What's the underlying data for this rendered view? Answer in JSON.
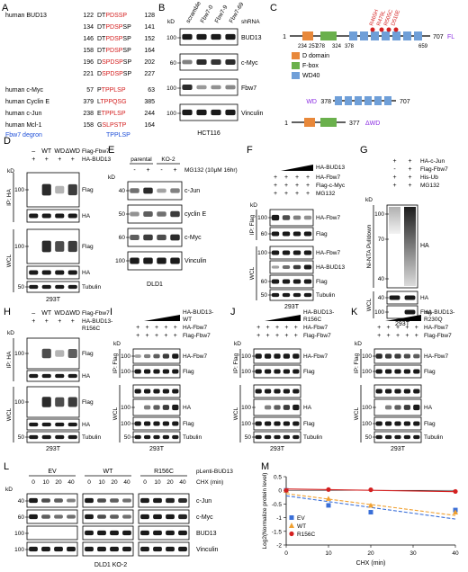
{
  "colors": {
    "red": "#d42020",
    "blue": "#1e4fd8",
    "purple": "#8a2be2",
    "orange": "#e8883a",
    "green": "#6ab04c",
    "wdblue": "#6f9fd8",
    "band": "#1a1a1a"
  },
  "panelA": {
    "letter": "A",
    "rows": [
      {
        "name": "human BUD13",
        "start": "122",
        "pre": "DT",
        "red": "PDSSP",
        "post": "",
        "end": "128"
      },
      {
        "name": "",
        "start": "134",
        "pre": "DT",
        "red": "PDSP",
        "post": "SP",
        "end": "141"
      },
      {
        "name": "",
        "start": "146",
        "pre": "DT",
        "red": "PDSP",
        "post": "SP",
        "end": "152"
      },
      {
        "name": "",
        "start": "158",
        "pre": "DT",
        "red": "PDSP",
        "post": "SP",
        "end": "164"
      },
      {
        "name": "",
        "start": "196",
        "pre": "D",
        "red": "SPDSP",
        "post": "SP",
        "end": "202"
      },
      {
        "name": "",
        "start": "221",
        "pre": "D",
        "red": "SPDSP",
        "post": "SP",
        "end": "227"
      },
      {
        "name": "human c-Myc",
        "start": "57",
        "pre": "P",
        "red": "TPPLSP",
        "post": "",
        "end": "63"
      },
      {
        "name": "human Cyclin E",
        "start": "379",
        "pre": "L",
        "red": "TPPQSG",
        "post": "",
        "end": "385"
      },
      {
        "name": "human c-Jun",
        "start": "238",
        "pre": "E",
        "red": "TPPLSP",
        "post": "",
        "end": "244"
      },
      {
        "name": "human Mcl-1",
        "start": "158",
        "pre": "G",
        "red": "SLPSTP",
        "post": "",
        "end": "164"
      }
    ],
    "degron_label": "Fbw7 degron",
    "degron_seq": "TPPLSP"
  },
  "panelB": {
    "letter": "B",
    "kd": "kD",
    "lanes": [
      "scramble",
      "Fbw7-0",
      "Fbw7-9",
      "Fbw7-69"
    ],
    "shrna": "shRNA",
    "blots": [
      {
        "mw": "100",
        "label": "BUD13"
      },
      {
        "mw": "60",
        "label": "c-Myc"
      },
      {
        "mw": "100",
        "label": "Fbw7"
      },
      {
        "mw": "100",
        "label": "Vinculin"
      }
    ],
    "cell": "HCT116"
  },
  "panelC": {
    "letter": "C",
    "start": "1",
    "mutations": [
      "R465H",
      "R479L",
      "R505C",
      "D510E"
    ],
    "fl_end": "707",
    "fl_label": "FL",
    "ticks": [
      "234",
      "257",
      "278",
      "324",
      "378",
      "659"
    ],
    "legend": [
      {
        "label": "D domain"
      },
      {
        "label": "F-box"
      },
      {
        "label": "WD40"
      }
    ],
    "wd_label": "WD",
    "wd_start": "378",
    "wd_end": "707",
    "dwd_start": "1",
    "dwd_end": "377",
    "dwd_label": "ΔWD"
  },
  "panelD": {
    "letter": "D",
    "kd": "kD",
    "top": [
      "–",
      "WT",
      "WD",
      "ΔWD"
    ],
    "row1": "Flag-Fbw7",
    "row2": "HA-BUD13",
    "plus": "+",
    "ip": "IP: HA",
    "wcl": "WCL",
    "blots": [
      "Flag",
      "HA",
      "Flag",
      "HA",
      "Tubulin"
    ],
    "mw": [
      "100",
      "",
      "100",
      "",
      "50"
    ],
    "mw_extra": "40",
    "cell": "293T"
  },
  "panelE": {
    "letter": "E",
    "kd": "kD",
    "groups": [
      "parental",
      "KO-2"
    ],
    "treat": "MG132 (10μM 16hr)",
    "signs": [
      "-",
      "+",
      "-",
      "+"
    ],
    "blots": [
      {
        "mw": "40",
        "label": "c-Jun"
      },
      {
        "mw": "50",
        "label": "cyclin E"
      },
      {
        "mw": "60",
        "label": "c-Myc"
      },
      {
        "mw": "100",
        "label": "Vinculin"
      }
    ],
    "cell": "DLD1"
  },
  "panelF": {
    "letter": "F",
    "kd": "kD",
    "rows": [
      "HA-BUD13",
      "HA-Fbw7",
      "Flag-c-Myc",
      "MG132"
    ],
    "minus": "-",
    "plus": "+",
    "ip": "IP: Flag",
    "wcl": "WCL",
    "blots": [
      "HA-Fbw7",
      "Flag",
      "HA-Fbw7",
      "HA-BUD13",
      "Flag",
      "Tubulin"
    ],
    "mw": [
      "100",
      "60",
      "100",
      "",
      "60",
      "50"
    ],
    "cell": "293T"
  },
  "panelG": {
    "letter": "G",
    "kd": "kD",
    "rows": [
      "HA-c-Jun",
      "Flag-Fbw7",
      "His-Ub",
      "MG132"
    ],
    "signs": [
      [
        "+",
        "+"
      ],
      [
        "-",
        "+"
      ],
      [
        "+",
        "+"
      ],
      [
        "+",
        "+"
      ]
    ],
    "pulldown": "Ni-NTA Pulldown",
    "wcl": "WCL",
    "blots": [
      "HA",
      "HA",
      "Flag"
    ],
    "mw": [
      "100",
      "70",
      "40",
      "40",
      "100"
    ],
    "cell": "293T"
  },
  "panelH": {
    "letter": "H",
    "kd": "kD",
    "top": [
      "–",
      "WT",
      "WD",
      "ΔWD"
    ],
    "row1": "Flag-Fbw7",
    "row2": "HA-BUD13-",
    "row3": "R156C",
    "plus": "+",
    "ip": "IP: HA",
    "wcl": "WCL",
    "blots": [
      "Flag",
      "HA",
      "Flag",
      "HA",
      "Tubulin"
    ],
    "mw": [
      "100",
      "",
      "100",
      "",
      "50"
    ],
    "mw_extra": "40",
    "cell": "293T"
  },
  "panelI": {
    "letter": "I",
    "kd": "kD",
    "construct": [
      "HA-BUD13-",
      "WT"
    ],
    "rows": [
      "HA-Fbw7",
      "Flag-Fbw7"
    ],
    "plus": "+",
    "ip": "IP: Flag",
    "wcl": "WCL",
    "blots": [
      "HA-Fbw7",
      "Flag",
      "HA",
      "Flag",
      "Tubulin"
    ],
    "mw": [
      "100",
      "100",
      "100",
      "100",
      "50"
    ],
    "cell": "293T"
  },
  "panelJ": {
    "letter": "J",
    "kd": "kD",
    "construct": [
      "HA-BUD13-",
      "R156C"
    ],
    "rows": [
      "HA-Fbw7",
      "Flag-Fbw7"
    ],
    "plus": "+",
    "ip": "IP: Flag",
    "wcl": "WCL",
    "blots": [
      "HA-Fbw7",
      "Flag",
      "HA",
      "Flag",
      "Tubulin"
    ],
    "mw": [
      "100",
      "100",
      "100",
      "100",
      "50"
    ],
    "cell": "293T"
  },
  "panelK": {
    "letter": "K",
    "kd": "kD",
    "construct": [
      "HA-BUD13-",
      "R230Q"
    ],
    "rows": [
      "HA-Fbw7",
      "Flag-Fbw7"
    ],
    "plus": "+",
    "ip": "IP: Flag",
    "wcl": "WCL",
    "blots": [
      "HA-Fbw7",
      "Flag",
      "HA",
      "Flag",
      "Tubulin"
    ],
    "mw": [
      "100",
      "100",
      "100",
      "100",
      "50"
    ],
    "cell": "293T"
  },
  "panelL": {
    "letter": "L",
    "kd": "kD",
    "groups": [
      "EV",
      "WT",
      "R156C"
    ],
    "construct": "pLenti-BUD13",
    "chx": "CHX (min)",
    "times": [
      "0",
      "10",
      "20",
      "40"
    ],
    "blots": [
      {
        "mw": "40",
        "label": "c-Jun"
      },
      {
        "mw": "60",
        "label": "c-Myc"
      },
      {
        "mw": "100",
        "label": "BUD13"
      },
      {
        "mw": "100",
        "label": "Vinculin"
      }
    ],
    "cell": "DLD1 KO-2"
  },
  "panelM": {
    "letter": "M"
  },
  "chart_data": {
    "type": "scatter",
    "xlabel": "CHX (min)",
    "ylabel": "Log2(Normalize protein level)",
    "xlim": [
      0,
      40
    ],
    "ylim": [
      -2.0,
      0.5
    ],
    "xticks": [
      0,
      10,
      20,
      30,
      40
    ],
    "yticks": [
      0.5,
      0.0,
      -0.5,
      -1.0,
      -1.5,
      -2.0
    ],
    "ytick_labels": [
      "0.5",
      "0",
      "-0.5",
      "-1",
      "-1.5",
      "-2"
    ],
    "legend_position": "bottom-left",
    "series": [
      {
        "name": "EV",
        "color": "#3a6fd8",
        "marker": "square",
        "x": [
          0,
          10,
          20,
          40
        ],
        "y": [
          0,
          -0.55,
          -0.8,
          -0.72
        ],
        "fit": [
          -0.2,
          -1.05
        ]
      },
      {
        "name": "WT",
        "color": "#f0a030",
        "marker": "triangle",
        "x": [
          0,
          10,
          20,
          40
        ],
        "y": [
          0,
          -0.3,
          -0.55,
          -0.8
        ],
        "fit": [
          -0.12,
          -0.92
        ]
      },
      {
        "name": "R156C",
        "color": "#d42020",
        "marker": "circle",
        "x": [
          0,
          10,
          20,
          40
        ],
        "y": [
          0,
          0.03,
          0.02,
          -0.04
        ],
        "fit": [
          0.05,
          -0.05
        ]
      }
    ]
  }
}
